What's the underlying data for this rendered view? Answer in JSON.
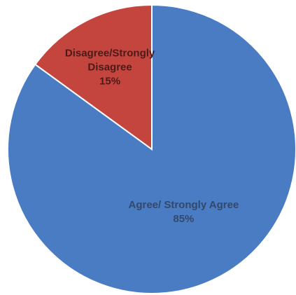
{
  "chart_data": {
    "type": "pie",
    "title": "",
    "slices": [
      {
        "label_lines": [
          "Agree/ Strongly Agree"
        ],
        "value": 85,
        "value_label": "85%",
        "color": "#4a7cc4",
        "label_color": "#33496b"
      },
      {
        "label_lines": [
          "Disagree/Strongly",
          "Disagree"
        ],
        "value": 15,
        "value_label": "15%",
        "color": "#c4443e",
        "label_color": "#4a1c19"
      }
    ],
    "start_angle_deg": 0,
    "direction": "clockwise",
    "legend": "none",
    "data_labels": "inside"
  }
}
